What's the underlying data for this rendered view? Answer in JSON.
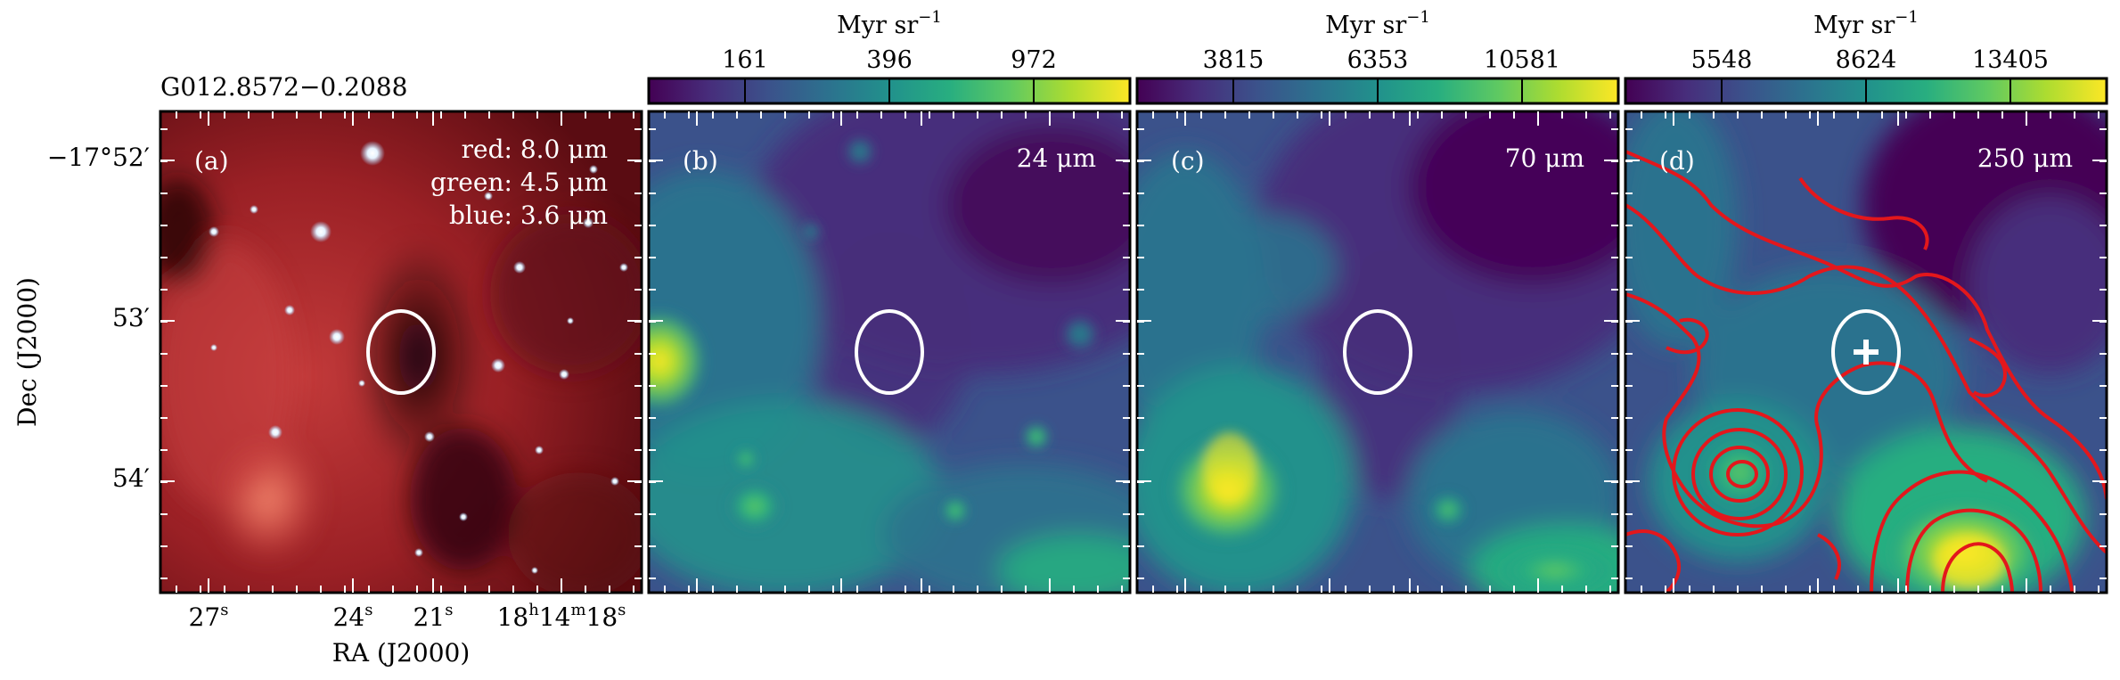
{
  "figure": {
    "source_title": "G012.8572−0.2088",
    "dec_axis_label": "Dec (J2000)",
    "ra_axis_label": "RA (J2000)",
    "dec_ticks": [
      {
        "label": "−17°52′"
      },
      {
        "label": "53′"
      },
      {
        "label": "54′"
      }
    ],
    "ra_ticks": [
      {
        "label": "27",
        "sup": "s"
      },
      {
        "label": "24",
        "sup": "s"
      },
      {
        "label": "21",
        "sup": "s"
      },
      {
        "label": "18",
        "sup": "h",
        "label2": "14",
        "sup2": "m",
        "label3": "18",
        "sup3": "s"
      }
    ]
  },
  "panels": [
    {
      "id": "a",
      "tag": "(a)",
      "legend_lines": [
        "red: 8.0 μm",
        "green: 4.5 μm",
        "blue: 3.6 μm"
      ],
      "colors": {
        "red_channel": "#b0262c",
        "dark_lane": "#1a0608"
      }
    },
    {
      "id": "b",
      "tag": "(b)",
      "wavelength": "24 μm",
      "colorbar": {
        "unit": "Myr sr",
        "unit_exp": "−1",
        "ticks": [
          "161",
          "396",
          "972"
        ]
      }
    },
    {
      "id": "c",
      "tag": "(c)",
      "wavelength": "70 μm",
      "colorbar": {
        "unit": "Myr sr",
        "unit_exp": "−1",
        "ticks": [
          "3815",
          "6353",
          "10581"
        ]
      }
    },
    {
      "id": "d",
      "tag": "(d)",
      "wavelength": "250 μm",
      "colorbar": {
        "unit": "Myr sr",
        "unit_exp": "−1",
        "ticks": [
          "5548",
          "8624",
          "13405"
        ]
      },
      "contour_color": "#e3171c"
    }
  ],
  "colormap": [
    "#440154",
    "#472d7b",
    "#3b528b",
    "#2c728e",
    "#21918c",
    "#28ae80",
    "#5ec962",
    "#addc30",
    "#fde725"
  ],
  "chart_data": {
    "type": "heatmap",
    "title": "G012.8572−0.2088",
    "xlabel": "RA (J2000)",
    "ylabel": "Dec (J2000)",
    "x_ticks": [
      "27s",
      "24s",
      "21s",
      "18h14m18s"
    ],
    "y_ticks": [
      "−17°52′",
      "53′",
      "54′"
    ],
    "panels": [
      {
        "panel": "(a)",
        "kind": "rgb composite",
        "channels": {
          "red": "8.0 μm",
          "green": "4.5 μm",
          "blue": "3.6 μm"
        }
      },
      {
        "panel": "(b)",
        "band": "24 μm",
        "unit": "Myr sr−1",
        "colorbar_ticks": [
          161,
          396,
          972
        ]
      },
      {
        "panel": "(c)",
        "band": "70 μm",
        "unit": "Myr sr−1",
        "colorbar_ticks": [
          3815,
          6353,
          10581
        ]
      },
      {
        "panel": "(d)",
        "band": "250 μm",
        "unit": "Myr sr−1",
        "colorbar_ticks": [
          5548,
          8624,
          13405
        ],
        "contours": true,
        "marker": "plus"
      }
    ],
    "colormap": "viridis",
    "grid": false
  }
}
